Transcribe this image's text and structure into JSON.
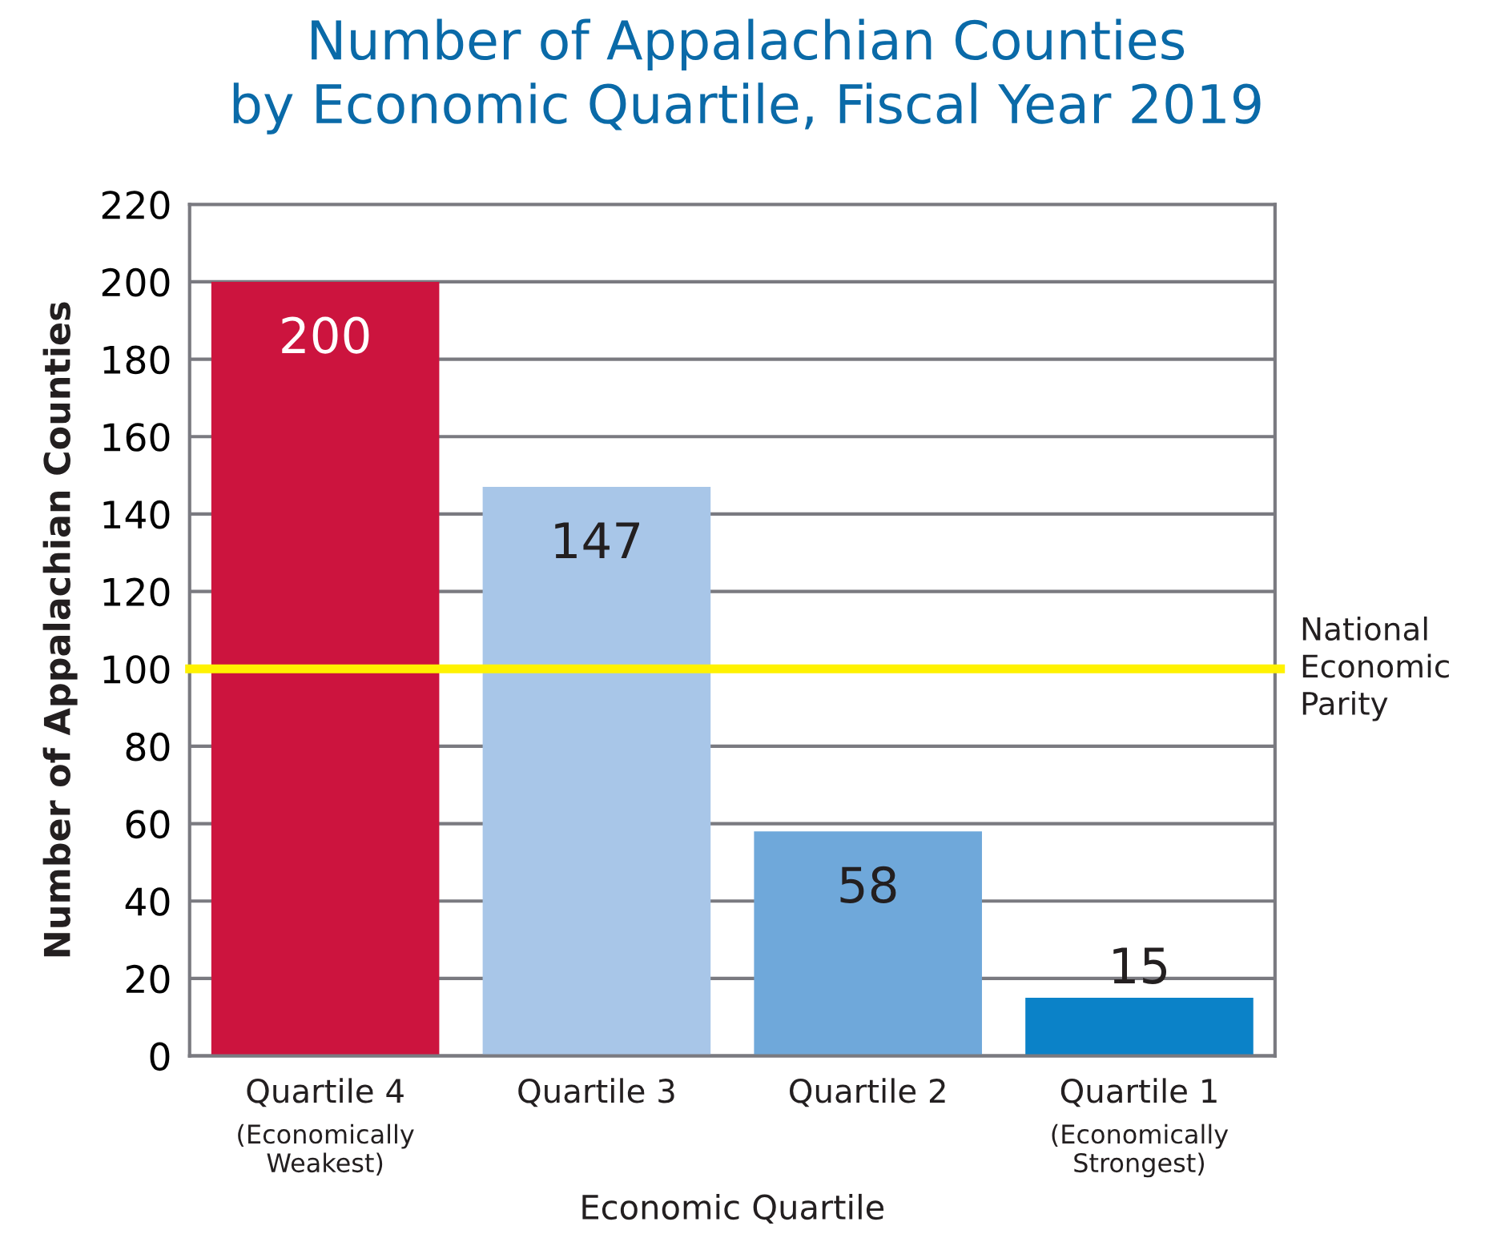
{
  "chart_data": {
    "type": "bar",
    "title": "Number of Appalachian Counties\nby Economic Quartile, Fiscal Year 2019",
    "xlabel": "Economic Quartile",
    "ylabel": "Number of Appalachian Counties",
    "categories": [
      "Quartile 4\n(Economically\nWeakest)",
      "Quartile 3",
      "Quartile 2",
      "Quartile 1\n(Economically\nStrongest)"
    ],
    "values": [
      200,
      147,
      58,
      15
    ],
    "colors": [
      "#cc143e",
      "#a8c6e8",
      "#6fa8da",
      "#0b82c8"
    ],
    "ylim": [
      0,
      220
    ],
    "yticks": [
      0,
      20,
      40,
      60,
      80,
      100,
      120,
      140,
      160,
      180,
      200,
      220
    ],
    "grid": "y",
    "data_labels": true,
    "ref_lines": [
      {
        "axis": "y",
        "value": 100,
        "label": "National\nEconomic\nParity",
        "color": "#fff200"
      }
    ]
  }
}
